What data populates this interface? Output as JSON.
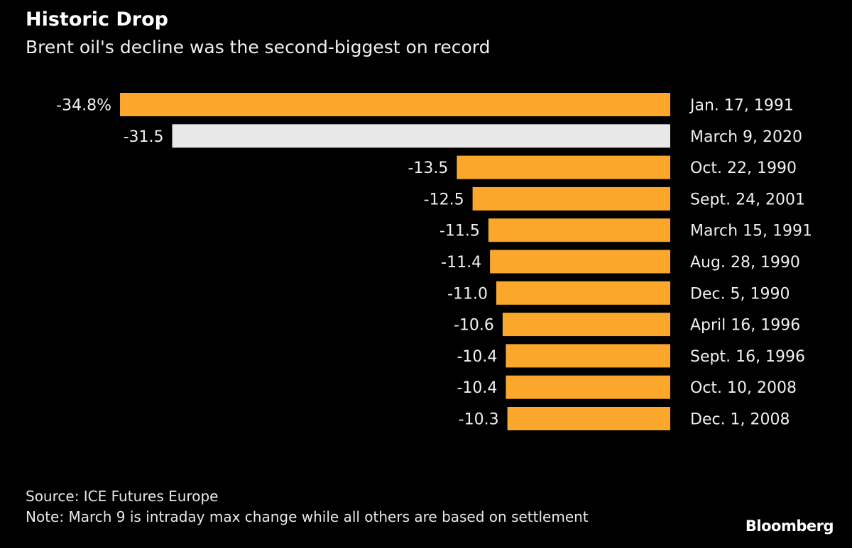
{
  "chart_data": {
    "type": "bar",
    "orientation": "horizontal",
    "title": "Historic Drop",
    "subtitle": "Brent oil's decline was the second-biggest on record",
    "categories": [
      "Jan. 17, 1991",
      "March 9, 2020",
      "Oct. 22, 1990",
      "Sept. 24, 2001",
      "March 15, 1991",
      "Aug. 28, 1990",
      "Dec. 5, 1990",
      "April 16, 1996",
      "Sept. 16, 1996",
      "Oct. 10, 2008",
      "Dec. 1, 2008"
    ],
    "values": [
      -34.8,
      -31.5,
      -13.5,
      -12.5,
      -11.5,
      -11.4,
      -11.0,
      -10.6,
      -10.4,
      -10.4,
      -10.3
    ],
    "value_labels": [
      "-34.8%",
      "-31.5",
      "-13.5",
      "-12.5",
      "-11.5",
      "-11.4",
      "-11.0",
      "-10.6",
      "-10.4",
      "-10.4",
      "-10.3"
    ],
    "highlight_index": 1,
    "colors": {
      "default": "#FBA72B",
      "highlight": "#E8E8E8",
      "background": "#000000",
      "text": "#F0F0F0"
    },
    "xlabel": "",
    "ylabel": "",
    "xlim": [
      -34.8,
      0
    ],
    "unit": "%",
    "grid": false,
    "legend": "none"
  },
  "header": {
    "title": "Historic Drop",
    "subtitle": "Brent oil's decline was the second-biggest on record"
  },
  "footer": {
    "source": "Source: ICE Futures Europe",
    "note": "Note: March 9 is intraday max change while all others are based on settlement",
    "logo": "Bloomberg"
  }
}
